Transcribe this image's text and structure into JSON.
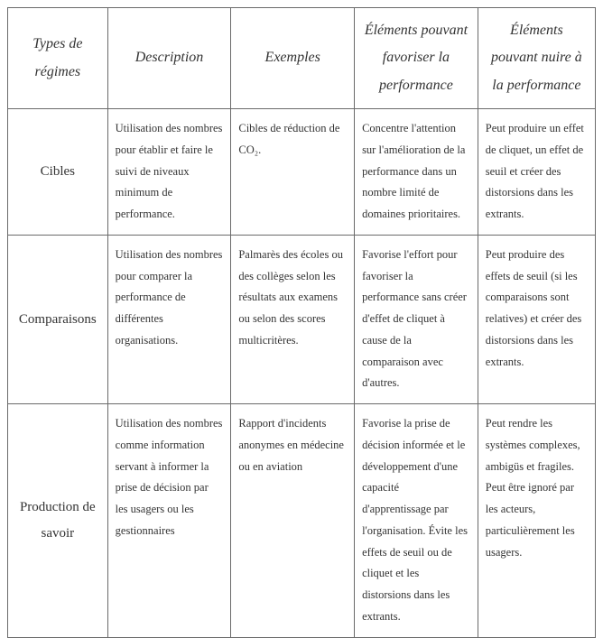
{
  "table": {
    "columns": [
      "Types de régimes",
      "Description",
      "Exemples",
      "Éléments pouvant favoriser la performance",
      "Éléments pouvant nuire à la performance"
    ],
    "rows": [
      {
        "title": "Cibles",
        "description": "Utilisation des nombres pour établir et faire le suivi de niveaux minimum de performance.",
        "examples": "Cibles de réduction de CO₂.",
        "favor": "Concentre l'attention sur l'amélioration de la performance dans un nombre limité de domaines prioritaires.",
        "harm": "Peut produire un effet de cliquet, un effet de seuil et créer des distorsions dans les extrants."
      },
      {
        "title": "Comparaisons",
        "description": "Utilisation des nombres pour comparer la performance de différentes organisations.",
        "examples": "Palmarès des écoles ou des collèges selon les résultats aux examens ou selon des scores multicritères.",
        "favor": "Favorise l'effort pour favoriser la performance sans créer d'effet de cliquet à cause de la comparaison avec d'autres.",
        "harm": "Peut produire des effets de seuil (si les comparaisons sont relatives) et créer des distorsions dans les extrants."
      },
      {
        "title": "Production de savoir",
        "description": "Utilisation des nombres comme information servant à informer la prise de décision par les usagers ou les gestionnaires",
        "examples": "Rapport d'incidents anonymes en médecine ou en aviation",
        "favor": "Favorise la prise de décision informée et le développement d'une capacité d'apprentissage par l'organisation. Évite les effets de seuil ou de cliquet et les distorsions dans les extrants.",
        "harm": "Peut rendre les systèmes complexes, ambigüs et fragiles. Peut être ignoré par les acteurs, particulièrement les usagers."
      }
    ],
    "style": {
      "border_color": "#6a6a6a",
      "background_color": "#ffffff",
      "text_color": "#333333",
      "header_font_size_pt": 12,
      "body_font_size_pt": 9.5,
      "row_title_font_size_pt": 11,
      "font_family": "Times New Roman",
      "col_widths_pct": [
        17,
        21,
        21,
        21,
        20
      ]
    }
  }
}
